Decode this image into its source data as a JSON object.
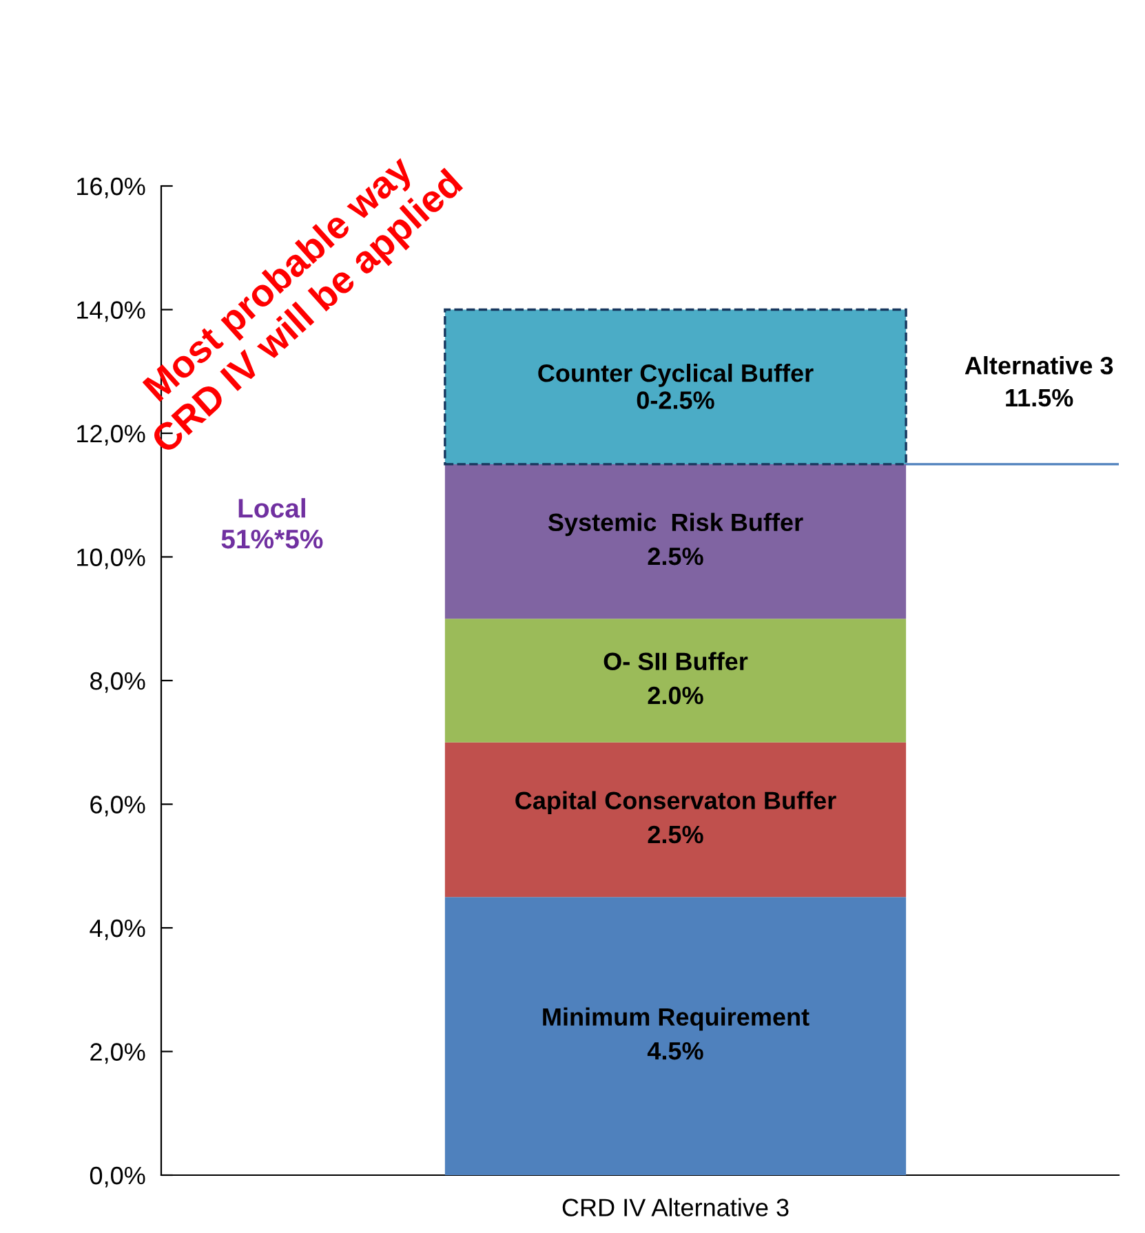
{
  "chart_data": {
    "type": "bar",
    "stacked": true,
    "xlabel": null,
    "categories": [
      "CRD IV Alternative 3"
    ],
    "series": [
      {
        "name": "Minimum Requirement",
        "color": "#4f81bd",
        "values": [
          4.5
        ],
        "value_labels": [
          "4.5%"
        ]
      },
      {
        "name": "Capital Conservaton Buffer",
        "color": "#c0504d",
        "values": [
          2.5
        ],
        "value_labels": [
          "2.5%"
        ]
      },
      {
        "name": "O- SII Buffer",
        "color": "#9bbb59",
        "values": [
          2.0
        ],
        "value_labels": [
          "2.0%"
        ]
      },
      {
        "name": "Systemic  Risk Buffer",
        "color": "#8064a2",
        "values": [
          2.5
        ],
        "value_labels": [
          "2.5%"
        ]
      },
      {
        "name": "Counter Cyclical Buffer",
        "color": "#4bacc6",
        "values": [
          2.5
        ],
        "line_style": "dashed"
      }
    ],
    "ylim": [
      0,
      16
    ],
    "yticks": [
      {
        "value": 0,
        "label": "0,0%"
      },
      {
        "value": 2,
        "label": "2,0%"
      },
      {
        "value": 4,
        "label": "4,0%"
      },
      {
        "value": 6,
        "label": "6,0%"
      },
      {
        "value": 8,
        "label": "8,0%"
      },
      {
        "value": 10,
        "label": "10,0%"
      },
      {
        "value": 12,
        "label": "12,0%"
      },
      {
        "value": 14,
        "label": "14,0%"
      },
      {
        "value": 16,
        "label": "16,0%"
      }
    ],
    "ref_lines": [
      {
        "axis": "y",
        "value": 11.5,
        "label": "Alternative 3\n11.5%",
        "color": "#4f81bd"
      }
    ],
    "annotations": [
      "Most probable way\nCRD IV will be applied",
      "Local\n51%*5%",
      "0-2.5%"
    ],
    "grid": false,
    "legend": false
  }
}
